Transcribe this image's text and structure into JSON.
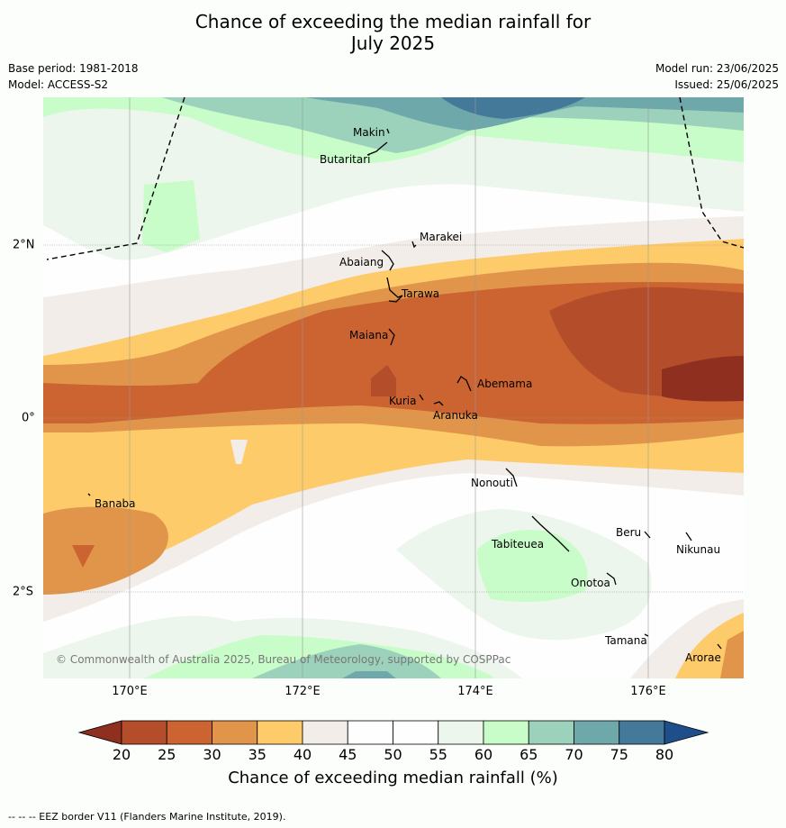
{
  "title_line1": "Chance of exceeding the median rainfall for",
  "title_line2": "July 2025",
  "base_period": "Base period: 1981-2018",
  "model": "Model: ACCESS-S2",
  "model_run": "Model run: 23/06/2025",
  "issued": "Issued: 25/06/2025",
  "copyright": "© Commonwealth of Australia 2025, Bureau of Meteorology, supported by COSPPac",
  "footer": "-- -- -- EEZ border V11 (Flanders Marine Institute, 2019).",
  "lon_labels": [
    "170°E",
    "172°E",
    "174°E",
    "176°E"
  ],
  "lat_labels": [
    "2°N",
    "0°",
    "2°S"
  ],
  "islands": [
    "Makin",
    "Butaritari",
    "Marakei",
    "Abaiang",
    "Tarawa",
    "Maiana",
    "Abemama",
    "Kuria",
    "Aranuka",
    "Banaba",
    "Nonouti",
    "Tabiteuea",
    "Beru",
    "Nikunau",
    "Onotoa",
    "Tamana",
    "Arorae"
  ],
  "colorbar": {
    "label": "Chance of exceeding median rainfall (%)",
    "ticks": [
      "20",
      "25",
      "30",
      "35",
      "40",
      "45",
      "50",
      "55",
      "60",
      "65",
      "70",
      "75",
      "80"
    ],
    "colors": [
      "#b44d2a",
      "#cb6431",
      "#e0954a",
      "#fecb6b",
      "#f2ede8",
      "#fdfefd",
      "#fdfefd",
      "#ecf6ec",
      "#c8fcc8",
      "#9cd2bc",
      "#6fa8ab",
      "#44799a"
    ],
    "under_color": "#8f2f1f",
    "over_color": "#1f4f8a"
  }
}
